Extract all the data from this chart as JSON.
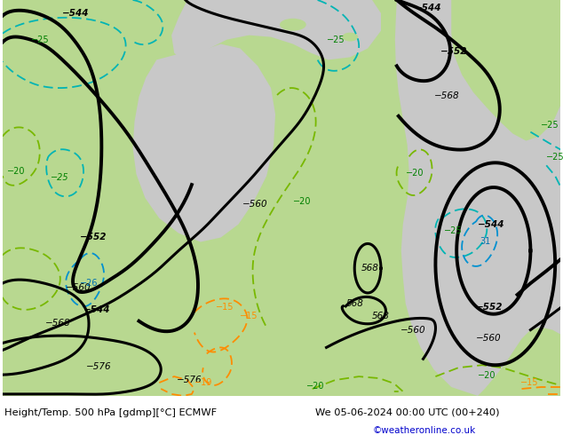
{
  "title_left": "Height/Temp. 500 hPa [gdmp][°C] ECMWF",
  "title_right": "We 05-06-2024 00:00 UTC (00+240)",
  "credit": "©weatheronline.co.uk",
  "bg_color": "#ffffff",
  "land_green": "#b8d890",
  "sea_gray": "#c8c8c8",
  "height_color": "#000000",
  "temp_cyan": "#00b4b4",
  "temp_green": "#78b800",
  "temp_orange": "#ff8c00",
  "temp_blue": "#0090d0",
  "label_black": "#000000",
  "label_green": "#008000",
  "label_orange": "#ff8c00",
  "label_blue": "#0070b0",
  "credit_color": "#0000cc"
}
